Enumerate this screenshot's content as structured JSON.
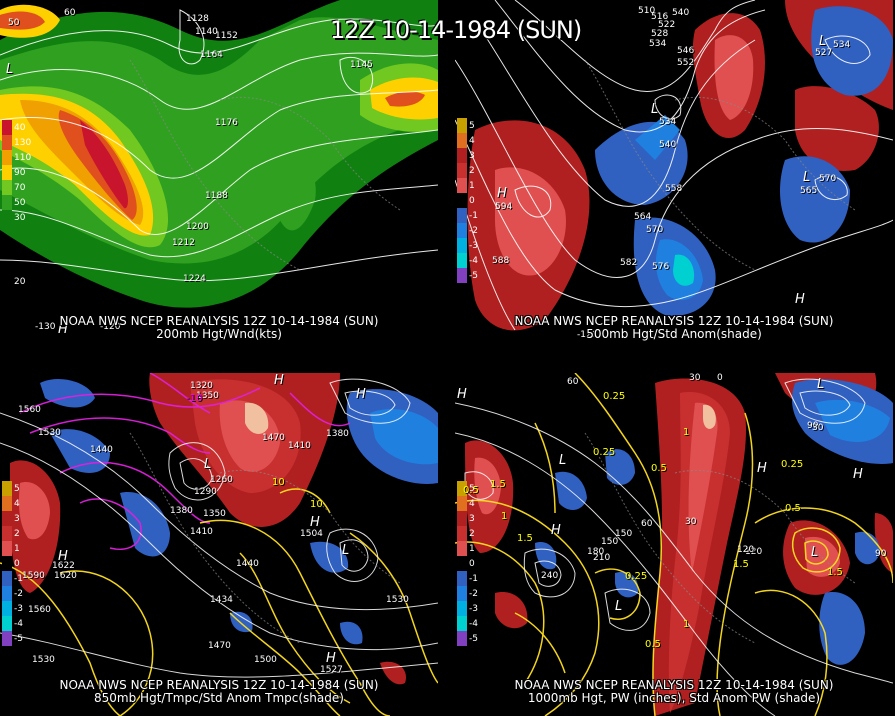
{
  "main_title": "12Z 10-14-1984 (SUN)",
  "panels": [
    {
      "caption1": "NOAA NWS NCEP REANALYSIS 12Z 10-14-1984 (SUN)",
      "caption2": "200mb Hgt/Wnd(kts)",
      "legend": [
        {
          "label": "40",
          "color": "#c8142c"
        },
        {
          "label": "130",
          "color": "#e0501e"
        },
        {
          "label": "110",
          "color": "#f0a000"
        },
        {
          "label": "90",
          "color": "#ffd000"
        },
        {
          "label": "70",
          "color": "#70c820"
        },
        {
          "label": "50",
          "color": "#30a020"
        },
        {
          "label": "30",
          "color": "#108010"
        }
      ],
      "contour_labels": [
        "1128",
        "1140",
        "1152",
        "1164",
        "1145",
        "1176",
        "1188",
        "1200",
        "1212",
        "1224"
      ],
      "grid_labels": [
        "50",
        "-130",
        "-120",
        "40",
        "20",
        "60"
      ],
      "centers": [
        "L",
        "H"
      ]
    },
    {
      "caption1": "NOAA NWS NCEP REANALYSIS 12Z 10-14-1984 (SUN)",
      "caption2": "500mb Hgt/Std Anom(shade)",
      "legend": [
        {
          "label": "5",
          "color": "#c8a000"
        },
        {
          "label": "4",
          "color": "#e07020"
        },
        {
          "label": "3",
          "color": "#b02020"
        },
        {
          "label": "2",
          "color": "#c83030"
        },
        {
          "label": "1",
          "color": "#e05050"
        },
        {
          "label": "0",
          "color": "#000000"
        },
        {
          "label": "-1",
          "color": "#3060c0"
        },
        {
          "label": "-2",
          "color": "#2080e0"
        },
        {
          "label": "-3",
          "color": "#00b0e0"
        },
        {
          "label": "-4",
          "color": "#00d0d0"
        },
        {
          "label": "-5",
          "color": "#8040c0"
        }
      ],
      "contour_labels": [
        "510",
        "516",
        "522",
        "528",
        "534",
        "540",
        "546",
        "552",
        "534",
        "540",
        "558",
        "564",
        "570",
        "576",
        "582",
        "588",
        "594",
        "534",
        "527",
        "570",
        "565"
      ],
      "grid_labels": [
        "-120"
      ],
      "centers": [
        "L",
        "L",
        "H",
        "L",
        "H"
      ]
    },
    {
      "caption1": "NOAA NWS NCEP REANALYSIS 12Z 10-14-1984 (SUN)",
      "caption2": "850mb Hgt/Tmpc/Std Anom Tmpc(shade)",
      "legend": [
        {
          "label": "5",
          "color": "#c8a000"
        },
        {
          "label": "4",
          "color": "#e07020"
        },
        {
          "label": "3",
          "color": "#b02020"
        },
        {
          "label": "2",
          "color": "#c83030"
        },
        {
          "label": "1",
          "color": "#e05050"
        },
        {
          "label": "0",
          "color": "#000000"
        },
        {
          "label": "-1",
          "color": "#3060c0"
        },
        {
          "label": "-2",
          "color": "#2080e0"
        },
        {
          "label": "-3",
          "color": "#00b0e0"
        },
        {
          "label": "-4",
          "color": "#00d0d0"
        },
        {
          "label": "-5",
          "color": "#8040c0"
        }
      ],
      "contour_labels": [
        "1560",
        "1530",
        "1320",
        "1350",
        "1470",
        "1410",
        "1380",
        "1440",
        "1290",
        "1260",
        "1380",
        "1350",
        "1410",
        "1440",
        "1590",
        "1560",
        "1530",
        "1470",
        "1500",
        "1530",
        "1504",
        "1622",
        "1527",
        "1620",
        "1434"
      ],
      "temp_labels": [
        "-10",
        "10",
        "10"
      ],
      "centers": [
        "H",
        "L",
        "H",
        "H",
        "H",
        "L",
        "H"
      ]
    },
    {
      "caption1": "NOAA NWS NCEP REANALYSIS 12Z 10-14-1984 (SUN)",
      "caption2": "1000mb Hgt, PW (inches), Std Anom PW (shade)",
      "legend": [
        {
          "label": "5",
          "color": "#c8a000"
        },
        {
          "label": "4",
          "color": "#e07020"
        },
        {
          "label": "3",
          "color": "#b02020"
        },
        {
          "label": "2",
          "color": "#c83030"
        },
        {
          "label": "1",
          "color": "#e05050"
        },
        {
          "label": "0",
          "color": "#000000"
        },
        {
          "label": "-1",
          "color": "#3060c0"
        },
        {
          "label": "-2",
          "color": "#2080e0"
        },
        {
          "label": "-3",
          "color": "#00b0e0"
        },
        {
          "label": "-4",
          "color": "#00d0d0"
        },
        {
          "label": "-5",
          "color": "#8040c0"
        }
      ],
      "contour_labels": [
        "30",
        "0",
        "60",
        "90",
        "120",
        "150",
        "180",
        "210",
        "240",
        "60",
        "30",
        "90",
        "120",
        "30",
        "150"
      ],
      "pw_labels": [
        "0.25",
        "0.5",
        "0.25",
        "1",
        "1.5",
        "0.5",
        "1.5",
        "1",
        "0.25",
        "0.5",
        "1.5",
        "1",
        "1.5",
        "0.5",
        "0.25"
      ],
      "centers": [
        "H",
        "L",
        "H",
        "L",
        "H",
        "L",
        "H",
        "L"
      ]
    }
  ]
}
